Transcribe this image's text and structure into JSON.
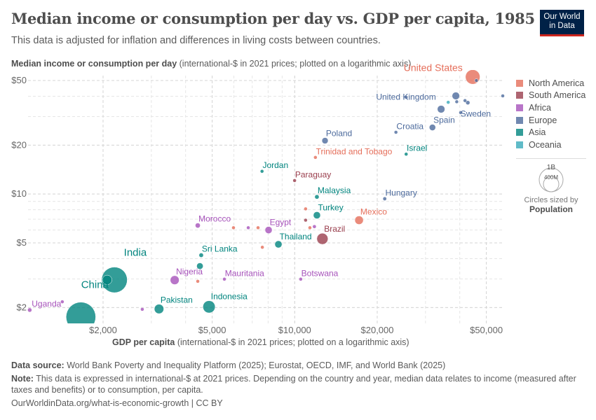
{
  "header": {
    "title": "Median income or consumption per day vs. GDP per capita, 1985",
    "subtitle": "This data is adjusted for inflation and differences in living costs between countries.",
    "logo": "Our World in Data"
  },
  "chart_data": {
    "type": "scatter",
    "title": "Median income or consumption per day vs. GDP per capita, 1985",
    "ylabel_bold": "Median income or consumption per day",
    "ylabel_rest": " (international-$ in 2021 prices; plotted on a logarithmic axis)",
    "xlabel_bold": "GDP per capita",
    "xlabel_rest": " (international-$ in 2021 prices; plotted on a logarithmic axis)",
    "x_scale": "log",
    "y_scale": "log",
    "xlim": [
      1050,
      57000
    ],
    "ylim": [
      1.63,
      54
    ],
    "x_ticks": [
      {
        "v": 2000,
        "label": "$2,000"
      },
      {
        "v": 5000,
        "label": "$5,000"
      },
      {
        "v": 10000,
        "label": "$10,000"
      },
      {
        "v": 20000,
        "label": "$20,000"
      },
      {
        "v": 50000,
        "label": "$50,000"
      }
    ],
    "y_ticks": [
      {
        "v": 2,
        "label": "$2"
      },
      {
        "v": 5,
        "label": "$5"
      },
      {
        "v": 10,
        "label": "$10"
      },
      {
        "v": 20,
        "label": "$20"
      },
      {
        "v": 50,
        "label": "$50"
      }
    ],
    "grid": true,
    "legend_position": "right",
    "legend": [
      {
        "name": "North America",
        "color": "#e56e5a"
      },
      {
        "name": "South America",
        "color": "#9a3e4d"
      },
      {
        "name": "Africa",
        "color": "#a652ba"
      },
      {
        "name": "Europe",
        "color": "#4c6a9c"
      },
      {
        "name": "Asia",
        "color": "#00847e"
      },
      {
        "name": "Oceania",
        "color": "#38aaba"
      }
    ],
    "size_legend": {
      "large": "1B",
      "small": "400M",
      "caption": "Circles sized by",
      "variable": "Population"
    },
    "points": [
      {
        "name": "United States",
        "region": "North America",
        "x": 44600,
        "y": 52.6,
        "pop": 238
      },
      {
        "name": "",
        "region": "Europe",
        "x": 46000,
        "y": 50,
        "pop": 4
      },
      {
        "name": "",
        "region": "Europe",
        "x": 57400,
        "y": 40.2,
        "pop": 0.4
      },
      {
        "name": "",
        "region": "Europe",
        "x": 25500,
        "y": 39.4,
        "pop": 0.3
      },
      {
        "name": "",
        "region": "Europe",
        "x": 38700,
        "y": 40.2,
        "pop": 56
      },
      {
        "name": "",
        "region": "Oceania",
        "x": 36300,
        "y": 36.7,
        "pop": 3
      },
      {
        "name": "",
        "region": "Europe",
        "x": 39000,
        "y": 37,
        "pop": 5
      },
      {
        "name": "",
        "region": "Europe",
        "x": 41800,
        "y": 37.6,
        "pop": 7
      },
      {
        "name": "",
        "region": "Europe",
        "x": 42800,
        "y": 36.5,
        "pop": 14
      },
      {
        "name": "United Kingdom",
        "region": "Europe",
        "x": 34200,
        "y": 33.3,
        "pop": 56.5
      },
      {
        "name": "Sweden",
        "region": "Europe",
        "x": 40300,
        "y": 31.7,
        "pop": 8.4
      },
      {
        "name": "Spain",
        "region": "Europe",
        "x": 31800,
        "y": 25.7,
        "pop": 38.5
      },
      {
        "name": "Croatia",
        "region": "Europe",
        "x": 23400,
        "y": 24,
        "pop": 4.7
      },
      {
        "name": "Poland",
        "region": "Europe",
        "x": 12900,
        "y": 21.3,
        "pop": 37
      },
      {
        "name": "Trinidad and Tobago",
        "region": "North America",
        "x": 11900,
        "y": 16.8,
        "pop": 1.2
      },
      {
        "name": "Israel",
        "region": "Asia",
        "x": 25500,
        "y": 17.6,
        "pop": 4.2
      },
      {
        "name": "Jordan",
        "region": "Asia",
        "x": 7600,
        "y": 13.8,
        "pop": 2.6
      },
      {
        "name": "Paraguay",
        "region": "South America",
        "x": 9990,
        "y": 12.1,
        "pop": 3.7
      },
      {
        "name": "Malaysia",
        "region": "Asia",
        "x": 12050,
        "y": 9.6,
        "pop": 15.7
      },
      {
        "name": "Hungary",
        "region": "Europe",
        "x": 21300,
        "y": 9.35,
        "pop": 10.6
      },
      {
        "name": "",
        "region": "North America",
        "x": 10960,
        "y": 8.1,
        "pop": 3
      },
      {
        "name": "Turkey",
        "region": "Asia",
        "x": 12050,
        "y": 7.4,
        "pop": 50
      },
      {
        "name": "Mexico",
        "region": "North America",
        "x": 17170,
        "y": 6.9,
        "pop": 75
      },
      {
        "name": "",
        "region": "South America",
        "x": 10960,
        "y": 6.9,
        "pop": 3
      },
      {
        "name": "",
        "region": "North America",
        "x": 11360,
        "y": 6.2,
        "pop": 3
      },
      {
        "name": "",
        "region": "Africa",
        "x": 11800,
        "y": 6.3,
        "pop": 10
      },
      {
        "name": "Brazil",
        "region": "South America",
        "x": 12620,
        "y": 5.3,
        "pop": 136
      },
      {
        "name": "Morocco",
        "region": "Africa",
        "x": 4430,
        "y": 6.4,
        "pop": 22
      },
      {
        "name": "",
        "region": "North America",
        "x": 5980,
        "y": 6.2,
        "pop": 3
      },
      {
        "name": "",
        "region": "Africa",
        "x": 6770,
        "y": 6.2,
        "pop": 3
      },
      {
        "name": "",
        "region": "North America",
        "x": 7350,
        "y": 6.2,
        "pop": 3
      },
      {
        "name": "Egypt",
        "region": "Africa",
        "x": 8030,
        "y": 6.0,
        "pop": 50
      },
      {
        "name": "",
        "region": "North America",
        "x": 7620,
        "y": 4.7,
        "pop": 3
      },
      {
        "name": "Thailand",
        "region": "Asia",
        "x": 8720,
        "y": 4.9,
        "pop": 51
      },
      {
        "name": "Sri Lanka",
        "region": "Asia",
        "x": 4560,
        "y": 4.2,
        "pop": 16
      },
      {
        "name": "",
        "region": "Asia",
        "x": 4510,
        "y": 3.6,
        "pop": 40
      },
      {
        "name": "India",
        "region": "Asia",
        "x": 2200,
        "y": 2.96,
        "pop": 780
      },
      {
        "name": "",
        "region": "Asia",
        "x": 2070,
        "y": 2.96,
        "pop": 95
      },
      {
        "name": "Nigeria",
        "region": "Africa",
        "x": 3650,
        "y": 2.95,
        "pop": 83
      },
      {
        "name": "",
        "region": "North America",
        "x": 4430,
        "y": 2.9,
        "pop": 3
      },
      {
        "name": "Mauritania",
        "region": "Africa",
        "x": 5540,
        "y": 2.99,
        "pop": 1.8
      },
      {
        "name": "Botswana",
        "region": "Africa",
        "x": 10520,
        "y": 2.99,
        "pop": 1.2
      },
      {
        "name": "Uganda",
        "region": "Africa",
        "x": 1080,
        "y": 1.93,
        "pop": 14.5
      },
      {
        "name": "",
        "region": "Africa",
        "x": 1420,
        "y": 2.17,
        "pop": 8
      },
      {
        "name": "China",
        "region": "Asia",
        "x": 1660,
        "y": 1.75,
        "pop": 1050
      },
      {
        "name": "",
        "region": "Africa",
        "x": 2780,
        "y": 1.95,
        "pop": 8
      },
      {
        "name": "Pakistan",
        "region": "Asia",
        "x": 3200,
        "y": 1.96,
        "pop": 95
      },
      {
        "name": "Indonesia",
        "region": "Asia",
        "x": 4870,
        "y": 2.02,
        "pop": 165
      }
    ]
  },
  "footer": {
    "source_label": "Data source:",
    "source": " World Bank Poverty and Inequality Platform (2025); Eurostat, OECD, IMF, and World Bank (2025)",
    "note_label": "Note:",
    "note": " This data is expressed in international-$ at 2021 prices. Depending on the country and year, median data relates to income (measured after taxes and benefits) or to consumption, per capita.",
    "credit": "OurWorldinData.org/what-is-economic-growth | CC BY"
  }
}
